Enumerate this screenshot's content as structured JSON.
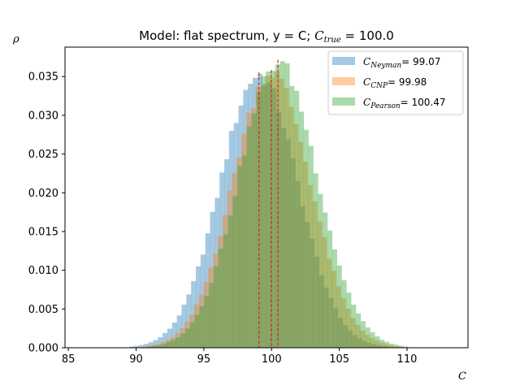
{
  "chart_data": {
    "type": "histogram",
    "title": {
      "prefix": "Model: flat spectrum, y = C; ",
      "sym": "C",
      "sub": "true",
      "suffix": " = 100.0"
    },
    "xlabel": "C",
    "ylabel": "ρ",
    "xlim": [
      84.75,
      114.5
    ],
    "ylim": [
      0,
      0.0388
    ],
    "xticks": [
      85,
      90,
      95,
      100,
      105,
      110
    ],
    "yticks": [
      0.0,
      0.005,
      0.01,
      0.015,
      0.02,
      0.025,
      0.03,
      0.035
    ],
    "ytick_labels": [
      "0.000",
      "0.005",
      "0.010",
      "0.015",
      "0.020",
      "0.025",
      "0.030",
      "0.035"
    ],
    "grid": false,
    "legend_position": "top-right",
    "bin_width": 0.35,
    "series": [
      {
        "name": "C_Neyman = 99.07",
        "label_sym": "C",
        "label_sub": "Neyman",
        "label_value": "= 99.07",
        "color": "#1f77b4",
        "alpha": 0.4,
        "mean": 99.07,
        "std": 2.86,
        "peak": 0.0352,
        "vline": 99.07
      },
      {
        "name": "C_CNP = 99.98",
        "label_sym": "C",
        "label_sub": "CNP",
        "label_value": "= 99.98",
        "color": "#ff7f0e",
        "alpha": 0.4,
        "mean": 99.98,
        "std": 2.86,
        "peak": 0.0355,
        "vline": 99.98
      },
      {
        "name": "C_Pearson = 100.47",
        "label_sym": "C",
        "label_sub": "Pearson",
        "label_value": "= 100.47",
        "color": "#2ca02c",
        "alpha": 0.4,
        "mean": 100.47,
        "std": 2.88,
        "peak": 0.0368,
        "vline": 100.47
      }
    ],
    "vline_color": "#d62728"
  }
}
